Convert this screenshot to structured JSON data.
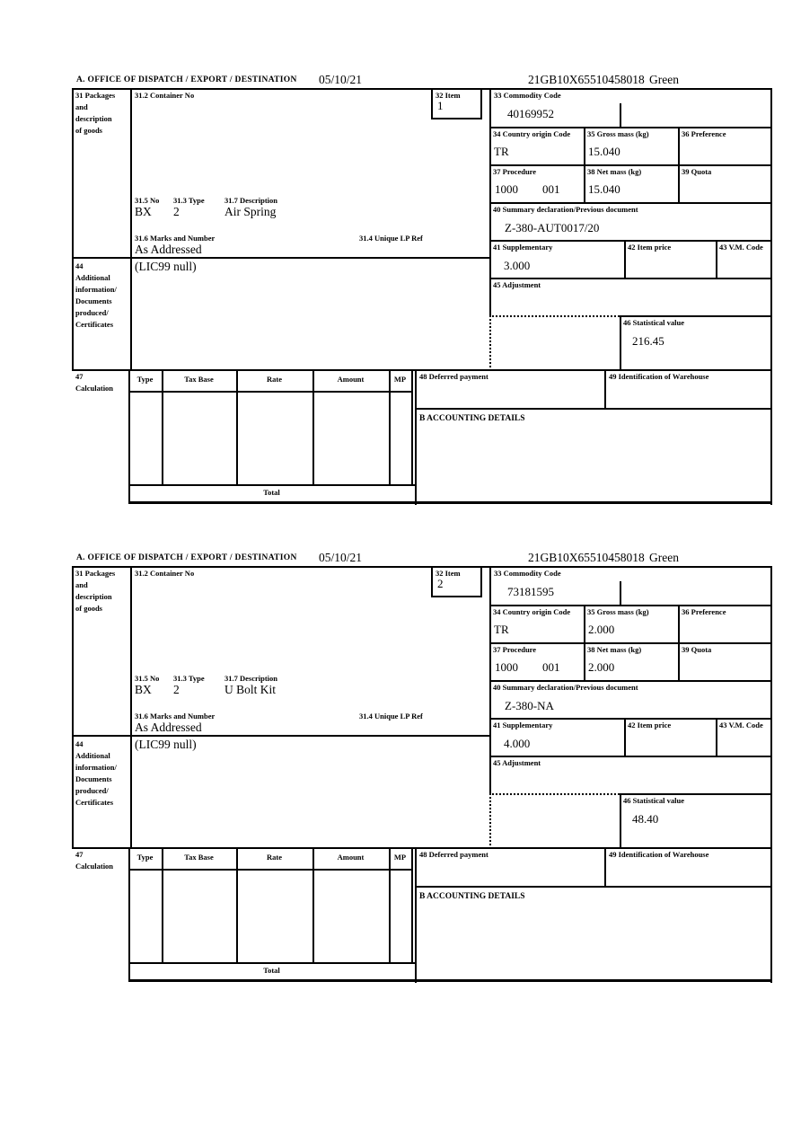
{
  "page": {
    "background": "#ffffff",
    "ink": "#000000"
  },
  "labels": {
    "office_header": "A.  OFFICE OF DISPATCH / EXPORT / DESTINATION",
    "box31_lines": [
      "31 Packages",
      "and",
      "description",
      "of goods"
    ],
    "box31_2": "31.2 Container No",
    "box32": "32 Item",
    "box33": "33 Commodity Code",
    "box34": "34 Country origin Code",
    "box35": "35 Gross mass (kg)",
    "box36": "36 Preference",
    "box37": "37 Procedure",
    "box38": "38 Net mass (kg)",
    "box39": "39 Quota",
    "box40": "40 Summary declaration/Previous document",
    "box41": "41 Supplementary",
    "box42": "42 Item price",
    "box43": "43 V.M. Code",
    "box44_lines": [
      "44",
      "Additional",
      "information/",
      "Documents",
      "produced/",
      "Certificates"
    ],
    "box45": "45 Adjustment",
    "box46": "46 Statistical value",
    "box47_lines": [
      "47",
      "Calculation"
    ],
    "box31_5": "31.5 No",
    "box31_3": "31.3 Type",
    "box31_7": "31.7 Description",
    "box31_6": "31.6 Marks and Number",
    "box31_4": "31.4 Unique LP Ref",
    "box48": "48 Deferred payment",
    "box49": "49 Identification of Warehouse",
    "accounting": "B ACCOUNTING DETAILS",
    "total": "Total",
    "calc_columns": [
      "Type",
      "Tax Base",
      "Rate",
      "Amount",
      "MP"
    ]
  },
  "items": [
    {
      "date": "05/10/21",
      "mrn": "21GB10X65510458018",
      "routing": "Green",
      "item_number": "1",
      "commodity_code": "40169952",
      "country_origin_code": "TR",
      "gross_mass_kg": "15.040",
      "procedure_code": "1000",
      "procedure_code_2": "001",
      "net_mass_kg": "15.040",
      "previous_document": "Z-380-AUT0017/20",
      "supplementary_units": "3.000",
      "package_count": "BX",
      "package_type": "2",
      "goods_description": "Air Spring",
      "marks_and_number": "As Addressed",
      "additional_information": "(LIC99 null)",
      "statistical_value": "216.45"
    },
    {
      "date": "05/10/21",
      "mrn": "21GB10X65510458018",
      "routing": "Green",
      "item_number": "2",
      "commodity_code": "73181595",
      "country_origin_code": "TR",
      "gross_mass_kg": "2.000",
      "procedure_code": "1000",
      "procedure_code_2": "001",
      "net_mass_kg": "2.000",
      "previous_document": "Z-380-NA",
      "supplementary_units": "4.000",
      "package_count": "BX",
      "package_type": "2",
      "goods_description": "U Bolt Kit",
      "marks_and_number": "As Addressed",
      "additional_information": "(LIC99 null)",
      "statistical_value": "48.40"
    }
  ]
}
